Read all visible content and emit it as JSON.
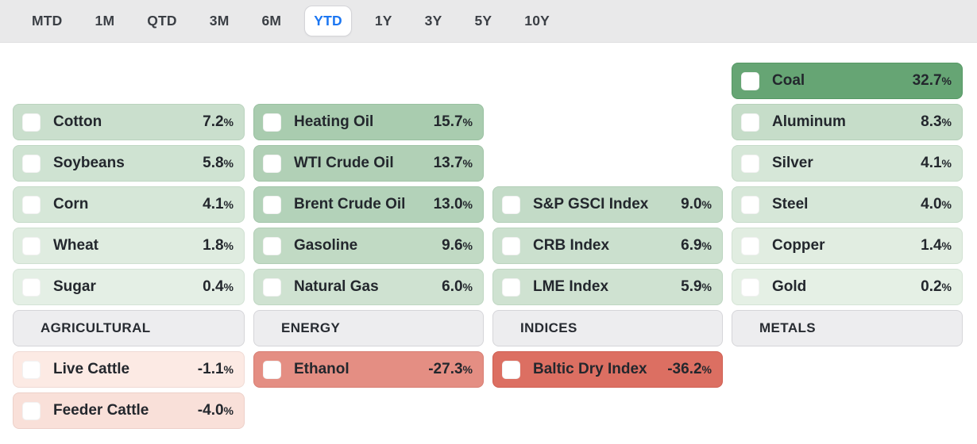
{
  "period_tabs": {
    "items": [
      {
        "label": "MTD",
        "active": false
      },
      {
        "label": "1M",
        "active": false
      },
      {
        "label": "QTD",
        "active": false
      },
      {
        "label": "3M",
        "active": false
      },
      {
        "label": "6M",
        "active": false
      },
      {
        "label": "YTD",
        "active": true
      },
      {
        "label": "1Y",
        "active": false
      },
      {
        "label": "3Y",
        "active": false
      },
      {
        "label": "5Y",
        "active": false
      },
      {
        "label": "10Y",
        "active": false
      }
    ]
  },
  "board": {
    "percent_suffix": "%",
    "columns": [
      {
        "category": "AGRICULTURAL",
        "positives": [
          {
            "label": "Cotton",
            "value": 7.2,
            "display": "7.2"
          },
          {
            "label": "Soybeans",
            "value": 5.8,
            "display": "5.8"
          },
          {
            "label": "Corn",
            "value": 4.1,
            "display": "4.1"
          },
          {
            "label": "Wheat",
            "value": 1.8,
            "display": "1.8"
          },
          {
            "label": "Sugar",
            "value": 0.4,
            "display": "0.4"
          }
        ],
        "negatives": [
          {
            "label": "Live Cattle",
            "value": -1.1,
            "display": "-1.1"
          },
          {
            "label": "Feeder Cattle",
            "value": -4.0,
            "display": "-4.0"
          }
        ]
      },
      {
        "category": "ENERGY",
        "positives": [
          {
            "label": "Heating Oil",
            "value": 15.7,
            "display": "15.7"
          },
          {
            "label": "WTI Crude Oil",
            "value": 13.7,
            "display": "13.7"
          },
          {
            "label": "Brent Crude Oil",
            "value": 13.0,
            "display": "13.0"
          },
          {
            "label": "Gasoline",
            "value": 9.6,
            "display": "9.6"
          },
          {
            "label": "Natural Gas",
            "value": 6.0,
            "display": "6.0"
          }
        ],
        "negatives": [
          {
            "label": "Ethanol",
            "value": -27.3,
            "display": "-27.3"
          }
        ]
      },
      {
        "category": "INDICES",
        "positives": [
          {
            "label": "S&P GSCI Index",
            "value": 9.0,
            "display": "9.0"
          },
          {
            "label": "CRB Index",
            "value": 6.9,
            "display": "6.9"
          },
          {
            "label": "LME Index",
            "value": 5.9,
            "display": "5.9"
          }
        ],
        "negatives": [
          {
            "label": "Baltic Dry Index",
            "value": -36.2,
            "display": "-36.2"
          }
        ]
      },
      {
        "category": "METALS",
        "positives": [
          {
            "label": "Coal",
            "value": 32.7,
            "display": "32.7"
          },
          {
            "label": "Aluminum",
            "value": 8.3,
            "display": "8.3"
          },
          {
            "label": "Silver",
            "value": 4.1,
            "display": "4.1"
          },
          {
            "label": "Steel",
            "value": 4.0,
            "display": "4.0"
          },
          {
            "label": "Copper",
            "value": 1.4,
            "display": "1.4"
          },
          {
            "label": "Gold",
            "value": 0.2,
            "display": "0.2"
          }
        ],
        "negatives": []
      }
    ]
  },
  "colors": {
    "accent_active_tab": "#1b76f2",
    "tabbar_background": "#e9e9ea",
    "positive_strong": "#66a575",
    "positive_weak": "#e6f0e6",
    "negative_strong": "#dc6e62",
    "negative_weak": "#fdeee9",
    "header_tile_background": "#ededef",
    "tile_text": "#23272d"
  }
}
